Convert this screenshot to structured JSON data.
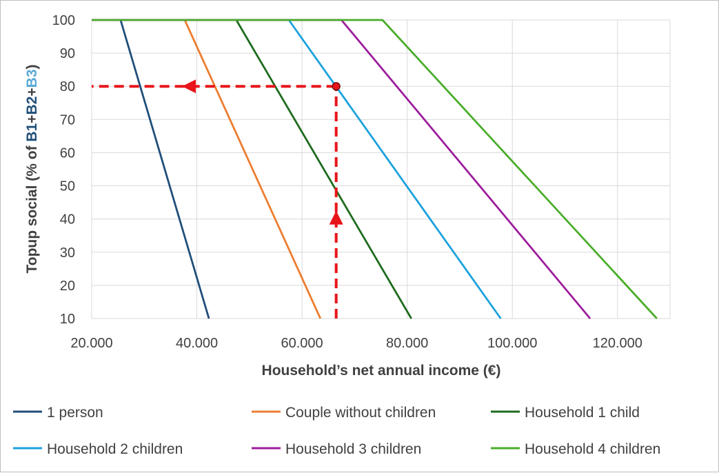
{
  "chart_data": {
    "type": "line",
    "title": "",
    "xlabel": "Household’s net annual income (€)",
    "ylabel": {
      "prefix": "Topup social (% of ",
      "b1": "B1",
      "plus1": "+",
      "b2": "B2",
      "plus2": "+",
      "b3": "B3",
      "suffix": ")"
    },
    "xlim": [
      20000,
      130000
    ],
    "ylim": [
      10,
      100
    ],
    "x_ticks": [
      20000,
      40000,
      60000,
      80000,
      100000,
      120000
    ],
    "x_tick_labels": [
      "20.000",
      "40.000",
      "60.000",
      "80.000",
      "100.000",
      "120.000"
    ],
    "y_ticks": [
      10,
      20,
      30,
      40,
      50,
      60,
      70,
      80,
      90,
      100
    ],
    "y_tick_labels": [
      "10",
      "20",
      "30",
      "40",
      "50",
      "60",
      "70",
      "80",
      "90",
      "100"
    ],
    "grid": true,
    "legend_position": "bottom",
    "series": [
      {
        "name": "1 person",
        "color": "#1f4e79",
        "points": [
          [
            20000,
            100
          ],
          [
            25500,
            100
          ],
          [
            42300,
            10
          ]
        ]
      },
      {
        "name": "Couple without children",
        "color": "#ed7d31",
        "points": [
          [
            20000,
            100
          ],
          [
            37700,
            100
          ],
          [
            63500,
            10
          ]
        ]
      },
      {
        "name": "Household 1 child",
        "color": "#1e6b1e",
        "points": [
          [
            20000,
            100
          ],
          [
            47500,
            100
          ],
          [
            80800,
            10
          ]
        ]
      },
      {
        "name": "Household 2 children",
        "color": "#1ba1dd",
        "points": [
          [
            20000,
            100
          ],
          [
            57500,
            100
          ],
          [
            97800,
            10
          ]
        ]
      },
      {
        "name": "Household 3 children",
        "color": "#9d1d9d",
        "points": [
          [
            20000,
            100
          ],
          [
            67500,
            100
          ],
          [
            114800,
            10
          ]
        ]
      },
      {
        "name": "Household 4 children",
        "color": "#4aad2a",
        "points": [
          [
            20000,
            100
          ],
          [
            75300,
            100
          ],
          [
            127500,
            10
          ]
        ]
      }
    ],
    "annotation": {
      "color": "#e8151a",
      "point": [
        66500,
        80
      ],
      "vertical_from_y": 10,
      "horizontal_to_x": 20000,
      "up_arrow_y": 40,
      "left_arrow_x": 38500
    }
  }
}
